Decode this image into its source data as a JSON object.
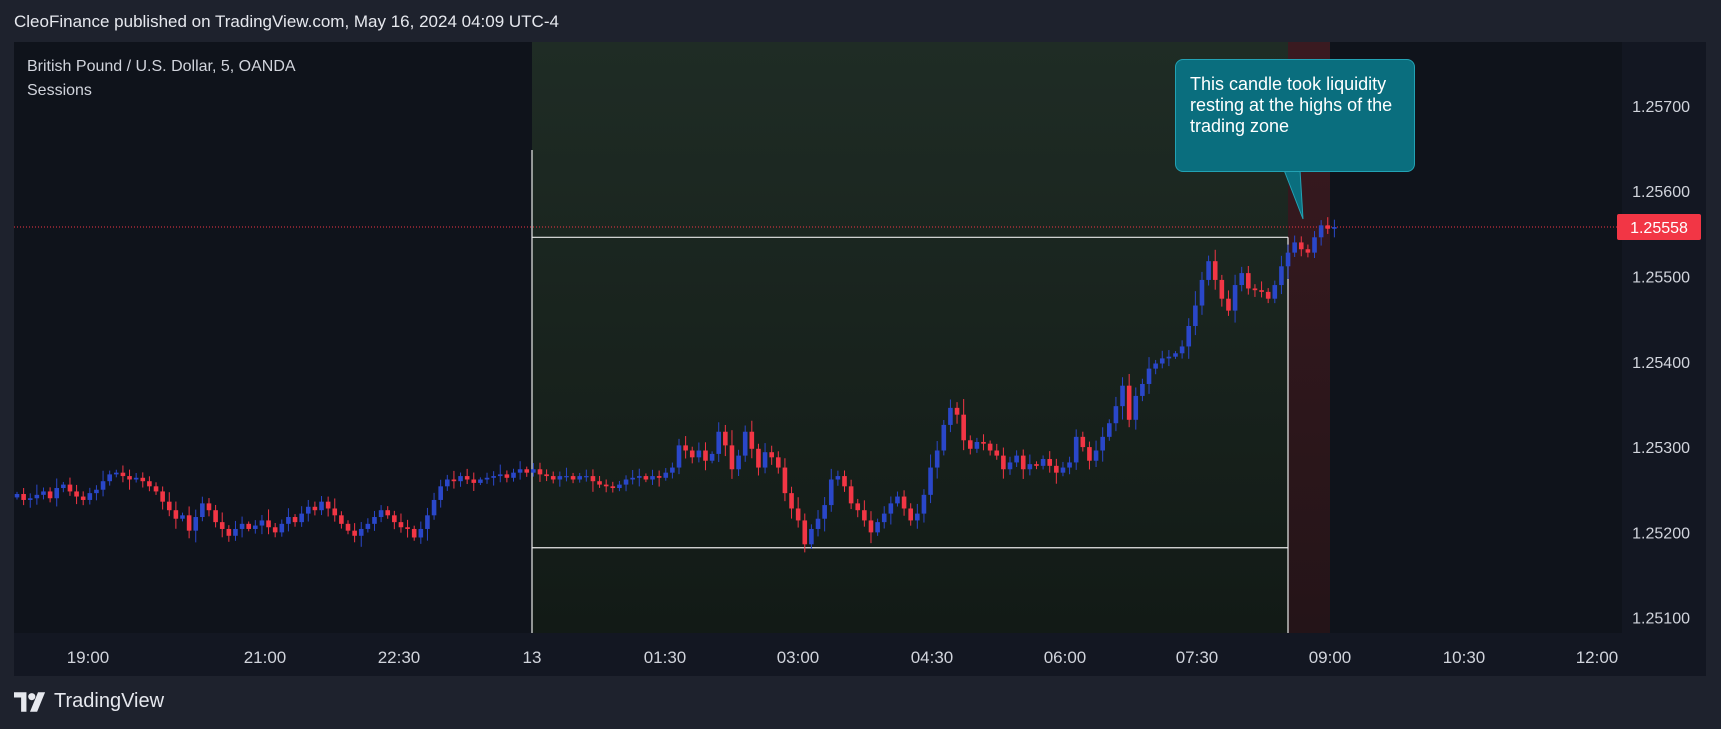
{
  "publisher": "CleoFinance published on TradingView.com, May 16, 2024 04:09 UTC-4",
  "legend": {
    "symbol": "British Pound / U.S. Dollar, 5, OANDA",
    "indicator": "Sessions"
  },
  "annotation": "This candle took liquidity resting at the highs of the trading zone",
  "footer_brand": "TradingView",
  "colors": {
    "up": "#2a47c9",
    "down": "#f23645",
    "callout": "#0a6e7e",
    "price_label": "#f23645"
  },
  "chart_data": {
    "type": "candlestick",
    "x_tick_labels": [
      "19:00",
      "21:00",
      "22:30",
      "13",
      "01:30",
      "03:00",
      "04:30",
      "06:00",
      "07:30",
      "09:00",
      "10:30",
      "12:00"
    ],
    "y_ticks": [
      1.257,
      1.256,
      1.255,
      1.254,
      1.253,
      1.252,
      1.251
    ],
    "y_tick_labels": [
      "1.25700",
      "1.25600",
      "1.25500",
      "1.25400",
      "1.25300",
      "1.25200",
      "1.25100"
    ],
    "ylim": [
      1.25082,
      1.25775
    ],
    "last_price": 1.25558,
    "last_price_label": "1.25558",
    "range_box": {
      "high": 1.25546,
      "low": 1.25182
    },
    "closes": [
      1.25245,
      1.25238,
      1.2524,
      1.25244,
      1.25248,
      1.2524,
      1.25252,
      1.25256,
      1.25248,
      1.25242,
      1.25238,
      1.25246,
      1.2525,
      1.2526,
      1.25268,
      1.2527,
      1.25266,
      1.25262,
      1.25264,
      1.2526,
      1.25254,
      1.25248,
      1.25236,
      1.25226,
      1.25216,
      1.2522,
      1.25202,
      1.25218,
      1.25234,
      1.25226,
      1.25212,
      1.25204,
      1.25196,
      1.25204,
      1.2521,
      1.25204,
      1.25208,
      1.25214,
      1.25206,
      1.252,
      1.2521,
      1.25218,
      1.25212,
      1.25222,
      1.2523,
      1.25226,
      1.25236,
      1.25228,
      1.2522,
      1.2521,
      1.25202,
      1.25196,
      1.25204,
      1.2521,
      1.25218,
      1.25226,
      1.2522,
      1.25212,
      1.25206,
      1.25204,
      1.25194,
      1.25204,
      1.2522,
      1.25238,
      1.25254,
      1.25262,
      1.2526,
      1.25266,
      1.25262,
      1.25258,
      1.25262,
      1.25264,
      1.25266,
      1.25268,
      1.25264,
      1.2527,
      1.25274,
      1.2527,
      1.25274,
      1.25268,
      1.25266,
      1.25262,
      1.25266,
      1.25266,
      1.25262,
      1.25266,
      1.25266,
      1.2526,
      1.25256,
      1.25254,
      1.25252,
      1.25256,
      1.25262,
      1.25264,
      1.25266,
      1.25262,
      1.25266,
      1.25264,
      1.2527,
      1.25276,
      1.25302,
      1.25296,
      1.25288,
      1.25296,
      1.25284,
      1.25292,
      1.25318,
      1.25302,
      1.25274,
      1.2529,
      1.25318,
      1.25298,
      1.25276,
      1.25294,
      1.25288,
      1.25276,
      1.25246,
      1.25228,
      1.25214,
      1.25186,
      1.25204,
      1.25216,
      1.25232,
      1.25262,
      1.25266,
      1.25254,
      1.25234,
      1.25226,
      1.25214,
      1.252,
      1.25212,
      1.25222,
      1.25234,
      1.25242,
      1.25228,
      1.25214,
      1.25222,
      1.25244,
      1.25276,
      1.25296,
      1.25326,
      1.25346,
      1.25338,
      1.25308,
      1.25298,
      1.25306,
      1.25304,
      1.25296,
      1.2529,
      1.25274,
      1.25282,
      1.2529,
      1.25274,
      1.2528,
      1.25278,
      1.25286,
      1.25278,
      1.2527,
      1.25276,
      1.25282,
      1.25312,
      1.253,
      1.25284,
      1.25296,
      1.25312,
      1.25328,
      1.25348,
      1.25372,
      1.25332,
      1.2536,
      1.25374,
      1.25392,
      1.25398,
      1.25404,
      1.25406,
      1.2541,
      1.25418,
      1.25442,
      1.25466,
      1.25496,
      1.25518,
      1.25496,
      1.25474,
      1.2546,
      1.2549,
      1.25504,
      1.25486,
      1.25484,
      1.25482,
      1.25474,
      1.2549,
      1.25512,
      1.25528,
      1.2554,
      1.25532,
      1.25528,
      1.25546,
      1.2556,
      1.25556,
      1.25558
    ]
  }
}
